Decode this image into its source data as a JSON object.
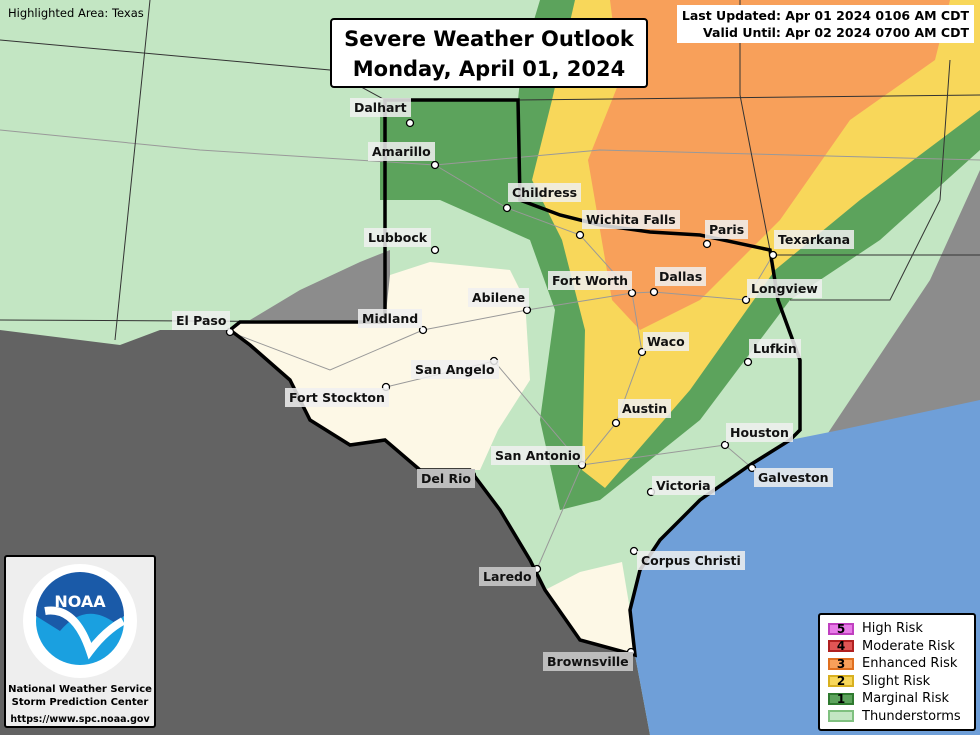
{
  "highlighted_area": "Highlighted Area: Texas",
  "title": {
    "line1": "Severe Weather Outlook",
    "line2": "Monday, April 01, 2024"
  },
  "times": {
    "updated": "Last Updated: Apr 01 2024 0106 AM CDT",
    "valid": "Valid Until: Apr 02 2024 0700 AM CDT"
  },
  "logo": {
    "text": "NOAA",
    "ring": "NATIONAL OCEANIC AND ATMOSPHERIC ADMINISTRATION · U.S. DEPARTMENT OF COMMERCE",
    "line1": "National Weather Service",
    "line2": "Storm Prediction Center",
    "url": "https://www.spc.noaa.gov"
  },
  "colors": {
    "tstorm": "#c3e6c3",
    "marginal": "#5ca35c",
    "slight": "#f8d75a",
    "enhanced": "#f8a05a",
    "moderate": "#e05555",
    "high": "#e87ae8",
    "no_risk": "#fdf8e6",
    "mexico": "#636363",
    "outside": "#8c8c8c",
    "gulf": "#6f9fd8"
  },
  "legend": [
    {
      "num": "5",
      "label": "High Risk",
      "fill": "#e87ae8",
      "border": "#c040c0"
    },
    {
      "num": "4",
      "label": "Moderate Risk",
      "fill": "#e05555",
      "border": "#b02020"
    },
    {
      "num": "3",
      "label": "Enhanced Risk",
      "fill": "#f8a05a",
      "border": "#e07020"
    },
    {
      "num": "2",
      "label": "Slight Risk",
      "fill": "#f8d75a",
      "border": "#d8b020"
    },
    {
      "num": "1",
      "label": "Marginal Risk",
      "fill": "#5ca35c",
      "border": "#2f7a2f"
    },
    {
      "num": "",
      "label": "Thunderstorms",
      "fill": "#c3e6c3",
      "border": "#7fc07f"
    }
  ],
  "cities": [
    {
      "name": "Dalhart",
      "dot": [
        410,
        123
      ],
      "lbl": [
        350,
        98
      ]
    },
    {
      "name": "Amarillo",
      "dot": [
        435,
        165
      ],
      "lbl": [
        368,
        142
      ]
    },
    {
      "name": "Childress",
      "dot": [
        507,
        208
      ],
      "lbl": [
        508,
        183
      ]
    },
    {
      "name": "Lubbock",
      "dot": [
        435,
        250
      ],
      "lbl": [
        364,
        228
      ]
    },
    {
      "name": "Wichita Falls",
      "dot": [
        580,
        235
      ],
      "lbl": [
        582,
        210
      ]
    },
    {
      "name": "Paris",
      "dot": [
        707,
        244
      ],
      "lbl": [
        705,
        220
      ]
    },
    {
      "name": "Texarkana",
      "dot": [
        773,
        255
      ],
      "lbl": [
        774,
        230
      ]
    },
    {
      "name": "Fort Worth",
      "dot": [
        632,
        293
      ],
      "lbl": [
        548,
        271
      ]
    },
    {
      "name": "Dallas",
      "dot": [
        654,
        292
      ],
      "lbl": [
        655,
        267
      ]
    },
    {
      "name": "Longview",
      "dot": [
        746,
        300
      ],
      "lbl": [
        747,
        279
      ]
    },
    {
      "name": "Abilene",
      "dot": [
        527,
        310
      ],
      "lbl": [
        468,
        288
      ]
    },
    {
      "name": "Midland",
      "dot": [
        423,
        330
      ],
      "lbl": [
        358,
        309
      ]
    },
    {
      "name": "El Paso",
      "dot": [
        230,
        332
      ],
      "lbl": [
        172,
        311
      ]
    },
    {
      "name": "San Angelo",
      "dot": [
        494,
        361
      ],
      "lbl": [
        411,
        360
      ]
    },
    {
      "name": "Waco",
      "dot": [
        642,
        352
      ],
      "lbl": [
        643,
        332
      ]
    },
    {
      "name": "Lufkin",
      "dot": [
        748,
        362
      ],
      "lbl": [
        749,
        339
      ]
    },
    {
      "name": "Fort Stockton",
      "dot": [
        386,
        387
      ],
      "lbl": [
        285,
        388
      ]
    },
    {
      "name": "Austin",
      "dot": [
        616,
        423
      ],
      "lbl": [
        618,
        399
      ]
    },
    {
      "name": "Houston",
      "dot": [
        725,
        445
      ],
      "lbl": [
        726,
        423
      ]
    },
    {
      "name": "San Antonio",
      "dot": [
        582,
        465
      ],
      "lbl": [
        491,
        446
      ]
    },
    {
      "name": "Del Rio",
      "dot": [
        472,
        475
      ],
      "lbl": [
        417,
        469
      ],
      "gray": true
    },
    {
      "name": "Galveston",
      "dot": [
        752,
        468
      ],
      "lbl": [
        754,
        468
      ]
    },
    {
      "name": "Victoria",
      "dot": [
        651,
        492
      ],
      "lbl": [
        652,
        476
      ]
    },
    {
      "name": "Corpus Christi",
      "dot": [
        634,
        551
      ],
      "lbl": [
        637,
        551
      ]
    },
    {
      "name": "Laredo",
      "dot": [
        537,
        569
      ],
      "lbl": [
        479,
        567
      ],
      "gray": true
    },
    {
      "name": "Brownsville",
      "dot": [
        631,
        652
      ],
      "lbl": [
        543,
        652
      ],
      "gray": true
    }
  ]
}
